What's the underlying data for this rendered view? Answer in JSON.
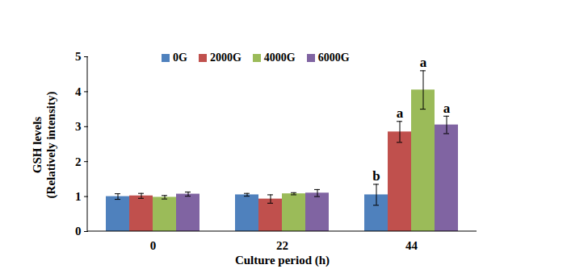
{
  "chart_data": {
    "type": "bar",
    "x_label": "Culture period (h)",
    "y_label": "GSH levels\n(Relatively intensity)",
    "categories": [
      "0",
      "22",
      "44"
    ],
    "series": [
      {
        "name": "0G",
        "color": "#4f81bd",
        "values": [
          1.0,
          1.05,
          1.05
        ],
        "errors": [
          0.08,
          0.04,
          0.3
        ],
        "annotations": [
          null,
          null,
          "b"
        ]
      },
      {
        "name": "2000G",
        "color": "#c0504d",
        "values": [
          1.02,
          0.93,
          2.85
        ],
        "errors": [
          0.07,
          0.12,
          0.3
        ],
        "annotations": [
          null,
          null,
          "a"
        ]
      },
      {
        "name": "4000G",
        "color": "#9bbb59",
        "values": [
          0.98,
          1.08,
          4.05
        ],
        "errors": [
          0.05,
          0.03,
          0.55
        ],
        "annotations": [
          null,
          null,
          "a"
        ]
      },
      {
        "name": "6000G",
        "color": "#8064a2",
        "values": [
          1.07,
          1.1,
          3.05
        ],
        "errors": [
          0.06,
          0.1,
          0.25
        ],
        "annotations": [
          null,
          null,
          "a"
        ]
      }
    ],
    "ylim": [
      0,
      5
    ],
    "yticks": [
      0,
      1,
      2,
      3,
      4,
      5
    ],
    "grid": false,
    "legend": "top"
  }
}
